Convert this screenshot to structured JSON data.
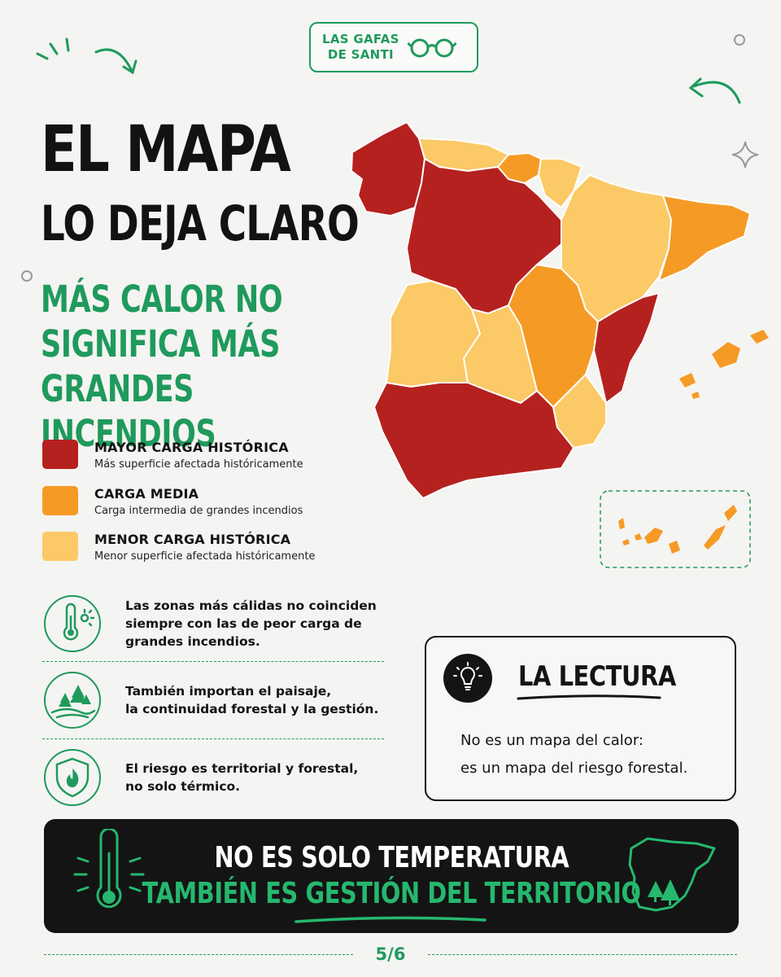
{
  "brand": {
    "line1": "LAS GAFAS",
    "line2": "DE SANTI"
  },
  "headline": {
    "line1": "EL MAPA",
    "line2": "LO DEJA CLARO",
    "subtitle_lines": [
      "MÁS CALOR NO",
      "SIGNIFICA MÁS",
      "GRANDES INCENDIOS"
    ]
  },
  "legend": [
    {
      "title": "MAYOR CARGA HISTÓRICA",
      "desc": "Más superficie afectada históricamente",
      "color": "#b5211f"
    },
    {
      "title": "CARGA MEDIA",
      "desc": "Carga intermedia de grandes incendios",
      "color": "#f59a25"
    },
    {
      "title": "MENOR CARGA HISTÓRICA",
      "desc": "Menor superficie afectada históricamente",
      "color": "#fbc965"
    }
  ],
  "points": [
    {
      "icon": "thermometer-sun-icon",
      "lines": [
        "Las zonas más cálidas no coinciden",
        "siempre con las de peor carga de",
        "grandes incendios."
      ]
    },
    {
      "icon": "forest-landscape-icon",
      "lines": [
        "También importan el paisaje,",
        "la continuidad forestal y la gestión."
      ]
    },
    {
      "icon": "shield-fire-icon",
      "lines": [
        "El riesgo es territorial y forestal,",
        "no solo térmico."
      ]
    }
  ],
  "lectura": {
    "title": "LA LECTURA",
    "lines": [
      "No es un mapa del calor:",
      "es un mapa del riesgo forestal."
    ]
  },
  "banner": {
    "line1": "NO ES SOLO TEMPERATURA",
    "line2": "TAMBIÉN ES GESTIÓN DEL TERRITORIO"
  },
  "page": "5/6",
  "colors": {
    "accent": "#1f9a5c",
    "high": "#b5211f",
    "medium": "#f59a25",
    "low": "#fbc965",
    "dark": "#141414"
  }
}
